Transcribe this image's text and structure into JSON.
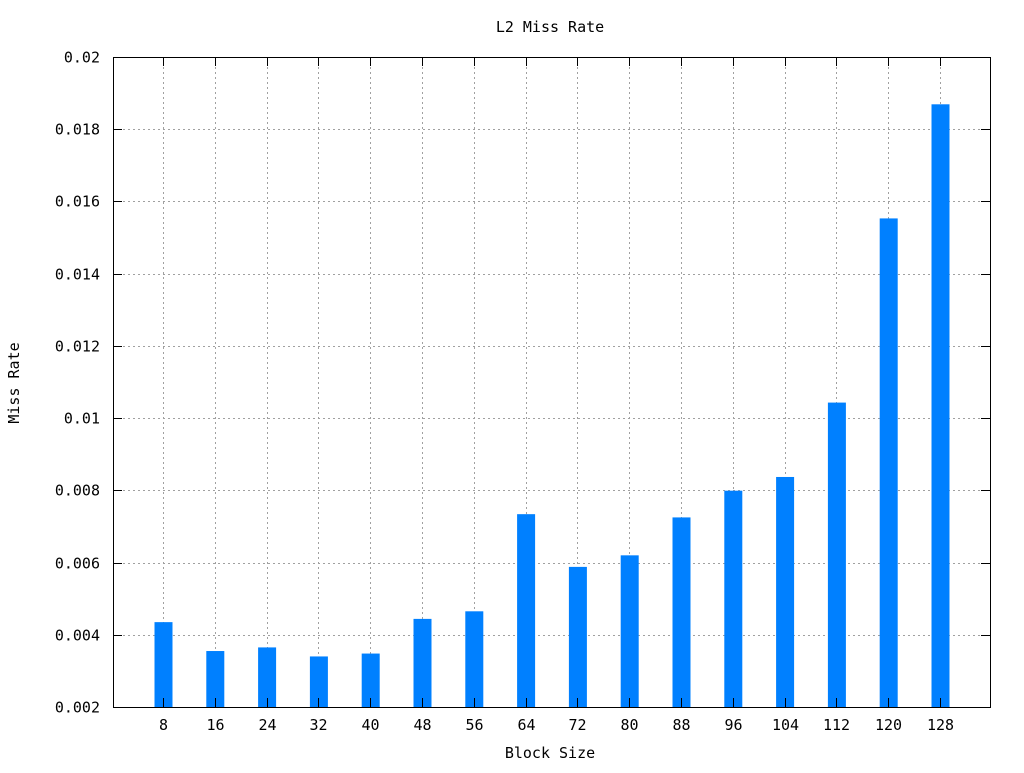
{
  "chart_data": {
    "type": "bar",
    "title": "L2 Miss Rate",
    "xlabel": "Block Size",
    "ylabel": "Miss Rate",
    "categories": [
      "8",
      "16",
      "24",
      "32",
      "40",
      "48",
      "56",
      "64",
      "72",
      "80",
      "88",
      "96",
      "104",
      "112",
      "120",
      "128"
    ],
    "values": [
      0.00435,
      0.00355,
      0.00365,
      0.0034,
      0.00348,
      0.00444,
      0.00465,
      0.00734,
      0.00588,
      0.0062,
      0.00725,
      0.00799,
      0.00837,
      0.01043,
      0.01553,
      0.01869
    ],
    "ylim": [
      0.002,
      0.02
    ],
    "yticks": [
      "0.002",
      "0.004",
      "0.006",
      "0.008",
      "0.01",
      "0.012",
      "0.014",
      "0.016",
      "0.018",
      "0.02"
    ],
    "ytick_values": [
      0.002,
      0.004,
      0.006,
      0.008,
      0.01,
      0.012,
      0.014,
      0.016,
      0.018,
      0.02
    ],
    "grid": true,
    "legend": "none",
    "bar_color": "#0080ff",
    "grid_color": "#a0a0a0"
  }
}
